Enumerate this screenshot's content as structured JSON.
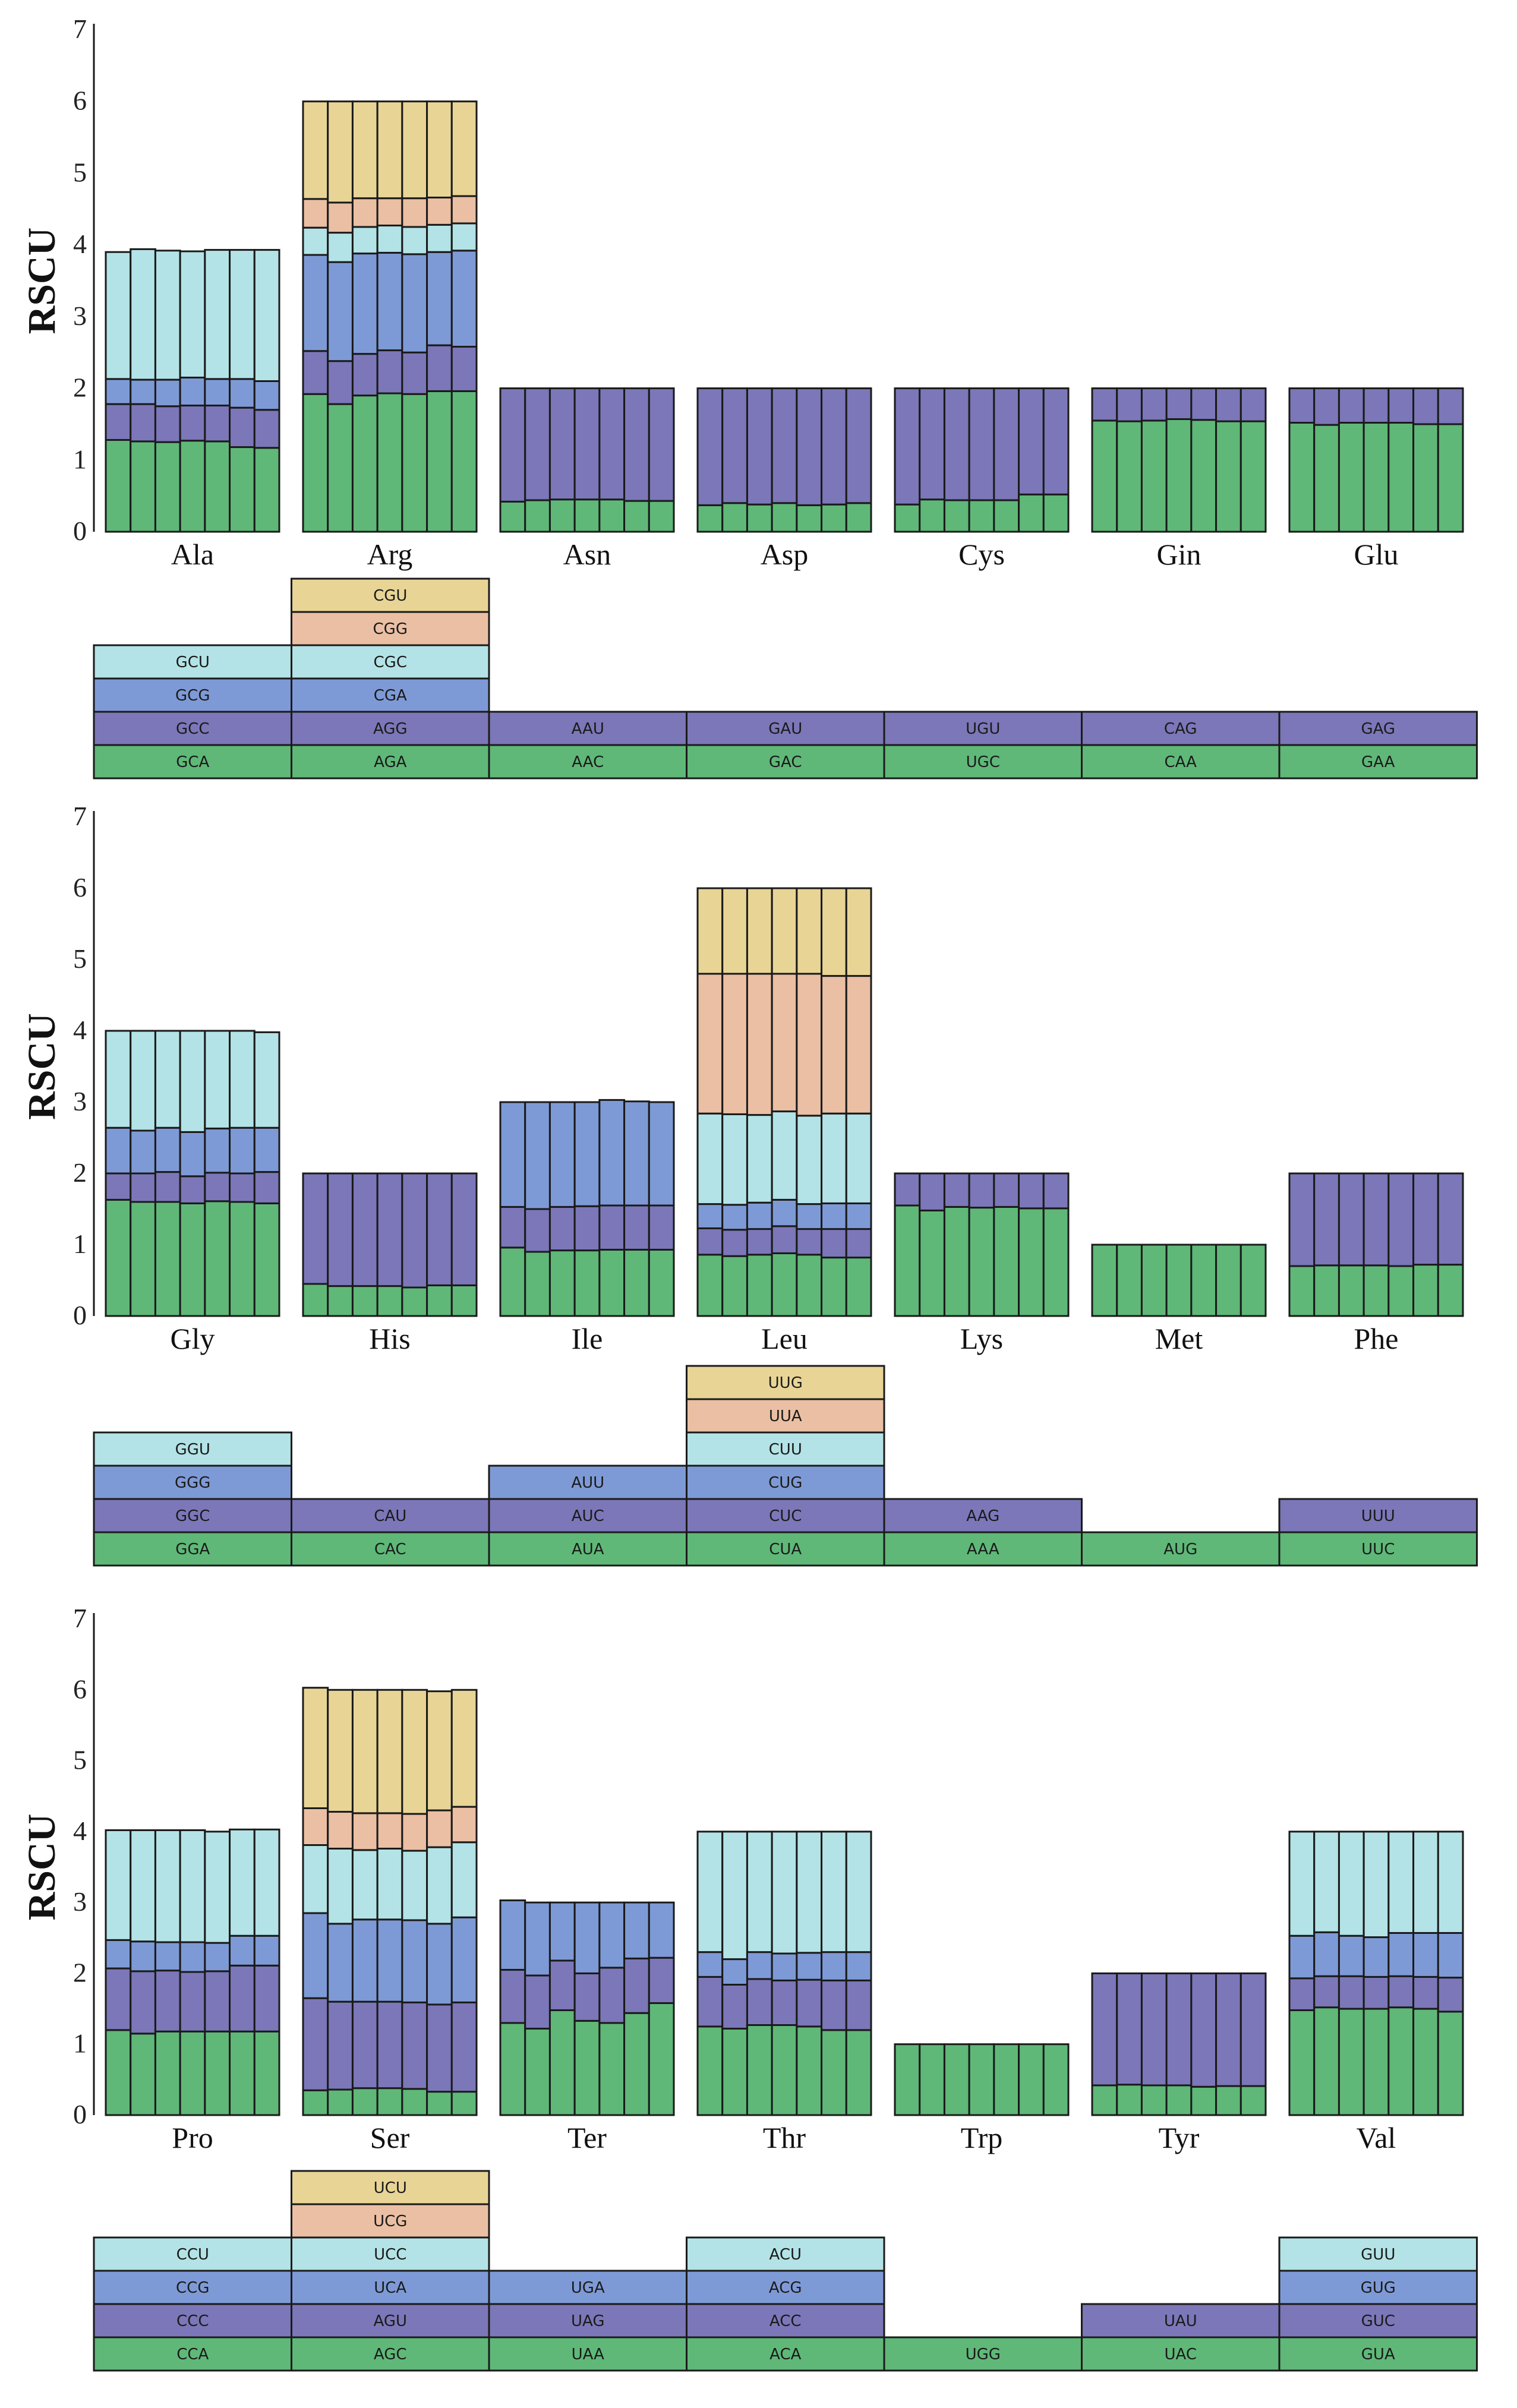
{
  "colors": {
    "seg1": "#5fb878",
    "seg2": "#7b77b8",
    "seg3": "#7e9ad6",
    "seg4": "#b3e3e6",
    "seg5": "#eabfa3",
    "seg6": "#e8d596"
  },
  "chart_data": [
    {
      "type": "bar",
      "stacked": true,
      "ylabel": "RSCU",
      "ylim": [
        0,
        7
      ],
      "yticks": [
        0,
        1,
        2,
        3,
        4,
        5,
        6,
        7
      ],
      "bars_per_group": 7,
      "groups": [
        {
          "name": "Ala",
          "codons": [
            "GCA",
            "GCC",
            "GCG",
            "GCU"
          ],
          "bars": [
            [
              1.28,
              0.5,
              0.35,
              1.77
            ],
            [
              1.26,
              0.52,
              0.34,
              1.82
            ],
            [
              1.25,
              0.5,
              0.37,
              1.8
            ],
            [
              1.27,
              0.49,
              0.39,
              1.76
            ],
            [
              1.26,
              0.5,
              0.37,
              1.8
            ],
            [
              1.18,
              0.55,
              0.4,
              1.8
            ],
            [
              1.17,
              0.53,
              0.4,
              1.83
            ]
          ]
        },
        {
          "name": "Arg",
          "codons": [
            "AGA",
            "AGG",
            "CGA",
            "CGC",
            "CGG",
            "CGU"
          ],
          "bars": [
            [
              1.92,
              0.6,
              1.34,
              0.38,
              0.4,
              1.36
            ],
            [
              1.78,
              0.6,
              1.38,
              0.41,
              0.42,
              1.41
            ],
            [
              1.9,
              0.58,
              1.4,
              0.37,
              0.4,
              1.35
            ],
            [
              1.93,
              0.6,
              1.36,
              0.38,
              0.38,
              1.35
            ],
            [
              1.92,
              0.58,
              1.37,
              0.38,
              0.4,
              1.35
            ],
            [
              1.96,
              0.64,
              1.3,
              0.38,
              0.38,
              1.34
            ],
            [
              1.96,
              0.62,
              1.34,
              0.38,
              0.38,
              1.32
            ]
          ]
        },
        {
          "name": "Asn",
          "codons": [
            "AAC",
            "AAU"
          ],
          "bars": [
            [
              0.42,
              1.58
            ],
            [
              0.44,
              1.56
            ],
            [
              0.45,
              1.55
            ],
            [
              0.45,
              1.55
            ],
            [
              0.45,
              1.55
            ],
            [
              0.43,
              1.57
            ],
            [
              0.43,
              1.57
            ]
          ]
        },
        {
          "name": "Asp",
          "codons": [
            "GAC",
            "GAU"
          ],
          "bars": [
            [
              0.37,
              1.63
            ],
            [
              0.4,
              1.6
            ],
            [
              0.38,
              1.62
            ],
            [
              0.4,
              1.6
            ],
            [
              0.37,
              1.63
            ],
            [
              0.38,
              1.62
            ],
            [
              0.4,
              1.6
            ]
          ]
        },
        {
          "name": "Cys",
          "codons": [
            "UGC",
            "UGU"
          ],
          "bars": [
            [
              0.38,
              1.62
            ],
            [
              0.45,
              1.55
            ],
            [
              0.44,
              1.56
            ],
            [
              0.44,
              1.56
            ],
            [
              0.44,
              1.56
            ],
            [
              0.52,
              1.48
            ],
            [
              0.52,
              1.48
            ]
          ]
        },
        {
          "name": "Gin",
          "codons": [
            "CAA",
            "CAG"
          ],
          "bars": [
            [
              1.55,
              0.45
            ],
            [
              1.54,
              0.46
            ],
            [
              1.55,
              0.45
            ],
            [
              1.57,
              0.43
            ],
            [
              1.56,
              0.44
            ],
            [
              1.54,
              0.46
            ],
            [
              1.54,
              0.46
            ]
          ]
        },
        {
          "name": "Glu",
          "codons": [
            "GAA",
            "GAG"
          ],
          "bars": [
            [
              1.52,
              0.48
            ],
            [
              1.49,
              0.51
            ],
            [
              1.52,
              0.48
            ],
            [
              1.52,
              0.48
            ],
            [
              1.52,
              0.48
            ],
            [
              1.5,
              0.5
            ],
            [
              1.5,
              0.5
            ]
          ]
        }
      ]
    },
    {
      "type": "bar",
      "stacked": true,
      "ylabel": "RSCU",
      "ylim": [
        0,
        7
      ],
      "yticks": [
        0,
        1,
        2,
        3,
        4,
        5,
        6,
        7
      ],
      "bars_per_group": 7,
      "groups": [
        {
          "name": "Gly",
          "codons": [
            "GGA",
            "GGC",
            "GGG",
            "GGU"
          ],
          "bars": [
            [
              1.63,
              0.37,
              0.64,
              1.36
            ],
            [
              1.6,
              0.4,
              0.6,
              1.4
            ],
            [
              1.6,
              0.42,
              0.62,
              1.36
            ],
            [
              1.58,
              0.38,
              0.62,
              1.42
            ],
            [
              1.61,
              0.4,
              0.62,
              1.37
            ],
            [
              1.6,
              0.4,
              0.64,
              1.36
            ],
            [
              1.58,
              0.44,
              0.62,
              1.34
            ]
          ]
        },
        {
          "name": "His",
          "codons": [
            "CAC",
            "CAU"
          ],
          "bars": [
            [
              0.45,
              1.55
            ],
            [
              0.42,
              1.58
            ],
            [
              0.42,
              1.58
            ],
            [
              0.42,
              1.58
            ],
            [
              0.4,
              1.6
            ],
            [
              0.43,
              1.57
            ],
            [
              0.43,
              1.57
            ]
          ]
        },
        {
          "name": "Ile",
          "codons": [
            "AUA",
            "AUC",
            "AUU"
          ],
          "bars": [
            [
              0.96,
              0.57,
              1.47
            ],
            [
              0.9,
              0.6,
              1.5
            ],
            [
              0.92,
              0.61,
              1.47
            ],
            [
              0.92,
              0.62,
              1.46
            ],
            [
              0.93,
              0.62,
              1.48
            ],
            [
              0.93,
              0.62,
              1.46
            ],
            [
              0.93,
              0.62,
              1.45
            ]
          ]
        },
        {
          "name": "Leu",
          "codons": [
            "CUA",
            "CUC",
            "CUG",
            "CUU",
            "UUA",
            "UUG"
          ],
          "bars": [
            [
              0.86,
              0.37,
              0.34,
              1.27,
              1.96,
              1.2
            ],
            [
              0.84,
              0.37,
              0.35,
              1.27,
              1.97,
              1.2
            ],
            [
              0.86,
              0.36,
              0.37,
              1.23,
              1.98,
              1.2
            ],
            [
              0.88,
              0.38,
              0.37,
              1.24,
              1.93,
              1.2
            ],
            [
              0.86,
              0.36,
              0.35,
              1.24,
              1.99,
              1.2
            ],
            [
              0.82,
              0.4,
              0.36,
              1.26,
              1.93,
              1.23
            ],
            [
              0.82,
              0.4,
              0.36,
              1.26,
              1.93,
              1.23
            ]
          ]
        },
        {
          "name": "Lys",
          "codons": [
            "AAA",
            "AAG"
          ],
          "bars": [
            [
              1.55,
              0.45
            ],
            [
              1.48,
              0.52
            ],
            [
              1.53,
              0.47
            ],
            [
              1.52,
              0.48
            ],
            [
              1.53,
              0.47
            ],
            [
              1.51,
              0.49
            ],
            [
              1.51,
              0.49
            ]
          ]
        },
        {
          "name": "Met",
          "codons": [
            "AUG"
          ],
          "bars": [
            [
              1
            ],
            [
              1
            ],
            [
              1
            ],
            [
              1
            ],
            [
              1
            ],
            [
              1
            ],
            [
              1
            ]
          ]
        },
        {
          "name": "Phe",
          "codons": [
            "UUC",
            "UUU"
          ],
          "bars": [
            [
              0.7,
              1.3
            ],
            [
              0.71,
              1.29
            ],
            [
              0.71,
              1.29
            ],
            [
              0.71,
              1.29
            ],
            [
              0.7,
              1.3
            ],
            [
              0.72,
              1.28
            ],
            [
              0.72,
              1.28
            ]
          ]
        }
      ]
    },
    {
      "type": "bar",
      "stacked": true,
      "ylabel": "RSCU",
      "ylim": [
        0,
        7
      ],
      "yticks": [
        0,
        1,
        2,
        3,
        4,
        5,
        6,
        7
      ],
      "bars_per_group": 7,
      "groups": [
        {
          "name": "Pro",
          "codons": [
            "CCA",
            "CCC",
            "CCG",
            "CCU"
          ],
          "bars": [
            [
              1.2,
              0.87,
              0.4,
              1.55
            ],
            [
              1.15,
              0.88,
              0.42,
              1.57
            ],
            [
              1.18,
              0.86,
              0.4,
              1.58
            ],
            [
              1.18,
              0.84,
              0.42,
              1.58
            ],
            [
              1.18,
              0.85,
              0.4,
              1.57
            ],
            [
              1.18,
              0.93,
              0.42,
              1.5
            ],
            [
              1.18,
              0.93,
              0.42,
              1.5
            ]
          ]
        },
        {
          "name": "Ser",
          "codons": [
            "AGC",
            "AGU",
            "UCA",
            "UCC",
            "UCG",
            "UCU"
          ],
          "bars": [
            [
              0.35,
              1.3,
              1.2,
              0.96,
              0.52,
              1.7
            ],
            [
              0.36,
              1.24,
              1.1,
              1.06,
              0.52,
              1.72
            ],
            [
              0.38,
              1.22,
              1.16,
              0.98,
              0.52,
              1.74
            ],
            [
              0.38,
              1.22,
              1.16,
              1.0,
              0.5,
              1.74
            ],
            [
              0.37,
              1.22,
              1.16,
              0.98,
              0.52,
              1.75
            ],
            [
              0.33,
              1.23,
              1.14,
              1.08,
              0.52,
              1.68
            ],
            [
              0.33,
              1.26,
              1.2,
              1.06,
              0.5,
              1.65
            ]
          ]
        },
        {
          "name": "Ter",
          "codons": [
            "UAA",
            "UAG",
            "UGA"
          ],
          "bars": [
            [
              1.3,
              0.75,
              0.98
            ],
            [
              1.22,
              0.75,
              1.03
            ],
            [
              1.48,
              0.7,
              0.82
            ],
            [
              1.33,
              0.67,
              1.0
            ],
            [
              1.3,
              0.78,
              0.92
            ],
            [
              1.44,
              0.77,
              0.79
            ],
            [
              1.58,
              0.64,
              0.78
            ]
          ]
        },
        {
          "name": "Thr",
          "codons": [
            "ACA",
            "ACC",
            "ACG",
            "ACU"
          ],
          "bars": [
            [
              1.25,
              0.7,
              0.35,
              1.7
            ],
            [
              1.22,
              0.62,
              0.36,
              1.8
            ],
            [
              1.27,
              0.65,
              0.38,
              1.7
            ],
            [
              1.27,
              0.63,
              0.38,
              1.72
            ],
            [
              1.25,
              0.66,
              0.38,
              1.71
            ],
            [
              1.2,
              0.7,
              0.4,
              1.7
            ],
            [
              1.2,
              0.7,
              0.4,
              1.7
            ]
          ]
        },
        {
          "name": "Trp",
          "codons": [
            "UGG"
          ],
          "bars": [
            [
              1
            ],
            [
              1
            ],
            [
              1
            ],
            [
              1
            ],
            [
              1
            ],
            [
              1
            ],
            [
              1
            ]
          ]
        },
        {
          "name": "Tyr",
          "codons": [
            "UAC",
            "UAU"
          ],
          "bars": [
            [
              0.42,
              1.58
            ],
            [
              0.43,
              1.57
            ],
            [
              0.42,
              1.58
            ],
            [
              0.42,
              1.58
            ],
            [
              0.4,
              1.6
            ],
            [
              0.41,
              1.59
            ],
            [
              0.41,
              1.59
            ]
          ]
        },
        {
          "name": "Val",
          "codons": [
            "GUA",
            "GUC",
            "GUG",
            "GUU"
          ],
          "bars": [
            [
              1.48,
              0.45,
              0.6,
              1.47
            ],
            [
              1.52,
              0.44,
              0.62,
              1.42
            ],
            [
              1.5,
              0.46,
              0.57,
              1.47
            ],
            [
              1.5,
              0.45,
              0.56,
              1.49
            ],
            [
              1.52,
              0.44,
              0.61,
              1.43
            ],
            [
              1.5,
              0.45,
              0.62,
              1.43
            ],
            [
              1.46,
              0.48,
              0.63,
              1.43
            ]
          ]
        }
      ]
    }
  ]
}
